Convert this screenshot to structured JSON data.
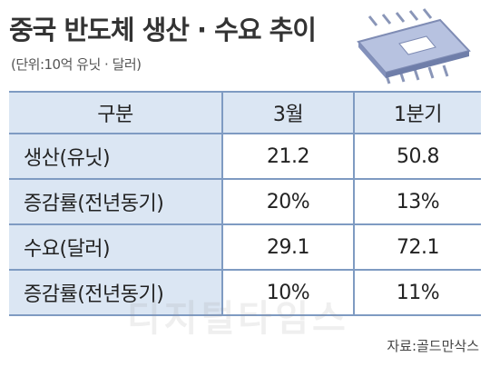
{
  "header": {
    "title": "중국 반도체 생산 · 수요 추이",
    "subtitle": "(단위:10억 유닛 · 달러)"
  },
  "table": {
    "columns": [
      "구분",
      "3월",
      "1분기"
    ],
    "rows": [
      [
        "생산(유닛)",
        "21.2",
        "50.8"
      ],
      [
        "증감률(전년동기)",
        "20%",
        "13%"
      ],
      [
        "수요(달러)",
        "29.1",
        "72.1"
      ],
      [
        "증감률(전년동기)",
        "10%",
        "11%"
      ]
    ]
  },
  "watermark": "디지털타임스",
  "source": "자료:골드만삭스"
}
